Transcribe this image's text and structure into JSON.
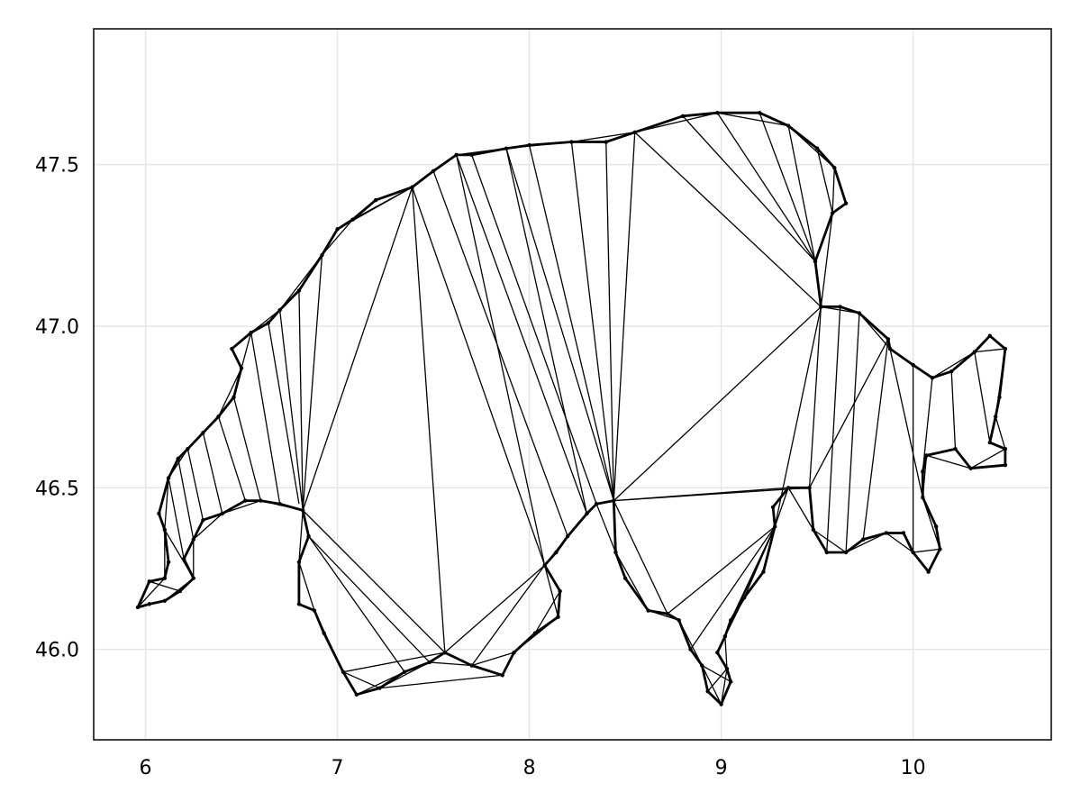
{
  "chart_data": {
    "type": "line",
    "title": "",
    "xlabel": "",
    "ylabel": "",
    "xlim": [
      5.73,
      10.72
    ],
    "ylim": [
      45.72,
      47.92
    ],
    "xticks": [
      6,
      7,
      8,
      9,
      10
    ],
    "yticks": [
      46.0,
      46.5,
      47.0,
      47.5
    ],
    "xtick_labels": [
      "6",
      "7",
      "8",
      "9",
      "10"
    ],
    "ytick_labels": [
      "46.0",
      "46.5",
      "47.0",
      "47.5"
    ],
    "grid": true,
    "line_color": "#000000",
    "series": [
      {
        "outline": [
          [
            5.96,
            46.13
          ],
          [
            6.02,
            46.21
          ],
          [
            6.1,
            46.22
          ],
          [
            6.12,
            46.27
          ],
          [
            6.1,
            46.37
          ],
          [
            6.07,
            46.42
          ],
          [
            6.12,
            46.53
          ],
          [
            6.17,
            46.59
          ],
          [
            6.22,
            46.62
          ],
          [
            6.3,
            46.67
          ],
          [
            6.38,
            46.72
          ],
          [
            6.46,
            46.78
          ],
          [
            6.5,
            46.87
          ],
          [
            6.45,
            46.93
          ],
          [
            6.55,
            46.98
          ],
          [
            6.64,
            47.01
          ],
          [
            6.7,
            47.05
          ],
          [
            6.8,
            47.11
          ],
          [
            6.92,
            47.22
          ],
          [
            7.0,
            47.3
          ],
          [
            7.08,
            47.33
          ],
          [
            7.2,
            47.39
          ],
          [
            7.39,
            47.43
          ],
          [
            7.5,
            47.48
          ],
          [
            7.62,
            47.53
          ],
          [
            7.7,
            47.53
          ],
          [
            7.88,
            47.55
          ],
          [
            8.0,
            47.56
          ],
          [
            8.22,
            47.57
          ],
          [
            8.4,
            47.57
          ],
          [
            8.55,
            47.6
          ],
          [
            8.8,
            47.65
          ],
          [
            8.98,
            47.66
          ],
          [
            9.2,
            47.66
          ],
          [
            9.35,
            47.62
          ],
          [
            9.5,
            47.55
          ],
          [
            9.59,
            47.49
          ],
          [
            9.65,
            47.38
          ],
          [
            9.58,
            47.35
          ],
          [
            9.49,
            47.2
          ],
          [
            9.52,
            47.06
          ],
          [
            9.62,
            47.06
          ],
          [
            9.72,
            47.04
          ],
          [
            9.87,
            46.96
          ],
          [
            9.88,
            46.93
          ],
          [
            10.0,
            46.88
          ],
          [
            10.1,
            46.84
          ],
          [
            10.2,
            46.86
          ],
          [
            10.32,
            46.92
          ],
          [
            10.4,
            46.97
          ],
          [
            10.48,
            46.93
          ],
          [
            10.45,
            46.78
          ],
          [
            10.43,
            46.72
          ],
          [
            10.4,
            46.64
          ],
          [
            10.48,
            46.62
          ],
          [
            10.48,
            46.57
          ],
          [
            10.3,
            46.56
          ],
          [
            10.22,
            46.62
          ],
          [
            10.07,
            46.6
          ],
          [
            10.05,
            46.55
          ],
          [
            10.05,
            46.47
          ],
          [
            10.12,
            46.38
          ],
          [
            10.14,
            46.31
          ],
          [
            10.08,
            46.24
          ],
          [
            10.0,
            46.3
          ],
          [
            9.95,
            46.36
          ],
          [
            9.86,
            46.36
          ],
          [
            9.74,
            46.34
          ],
          [
            9.65,
            46.3
          ],
          [
            9.55,
            46.3
          ],
          [
            9.48,
            46.37
          ],
          [
            9.46,
            46.5
          ],
          [
            9.35,
            46.5
          ],
          [
            9.27,
            46.44
          ],
          [
            9.28,
            46.38
          ],
          [
            9.22,
            46.24
          ],
          [
            9.12,
            46.16
          ],
          [
            9.05,
            46.09
          ],
          [
            9.02,
            46.04
          ],
          [
            8.98,
            45.99
          ],
          [
            9.03,
            45.94
          ],
          [
            9.05,
            45.9
          ],
          [
            9.0,
            45.83
          ],
          [
            8.93,
            45.87
          ],
          [
            8.9,
            45.95
          ],
          [
            8.84,
            46.0
          ],
          [
            8.78,
            46.09
          ],
          [
            8.72,
            46.11
          ],
          [
            8.62,
            46.12
          ],
          [
            8.5,
            46.22
          ],
          [
            8.45,
            46.3
          ],
          [
            8.44,
            46.46
          ],
          [
            8.35,
            46.45
          ],
          [
            8.3,
            46.42
          ],
          [
            8.2,
            46.35
          ],
          [
            8.14,
            46.3
          ],
          [
            8.08,
            46.26
          ],
          [
            8.16,
            46.18
          ],
          [
            8.15,
            46.1
          ],
          [
            8.03,
            46.05
          ],
          [
            7.92,
            45.99
          ],
          [
            7.86,
            45.92
          ],
          [
            7.7,
            45.95
          ],
          [
            7.56,
            45.99
          ],
          [
            7.48,
            45.96
          ],
          [
            7.35,
            45.93
          ],
          [
            7.22,
            45.88
          ],
          [
            7.1,
            45.86
          ],
          [
            7.03,
            45.93
          ],
          [
            6.93,
            46.05
          ],
          [
            6.88,
            46.12
          ],
          [
            6.8,
            46.14
          ],
          [
            6.8,
            46.27
          ],
          [
            6.85,
            46.35
          ],
          [
            6.82,
            46.43
          ],
          [
            6.7,
            46.45
          ],
          [
            6.6,
            46.46
          ],
          [
            6.52,
            46.46
          ],
          [
            6.4,
            46.42
          ],
          [
            6.3,
            46.4
          ],
          [
            6.25,
            46.34
          ],
          [
            6.2,
            46.28
          ],
          [
            6.25,
            46.22
          ],
          [
            6.18,
            46.18
          ],
          [
            6.1,
            46.15
          ],
          [
            6.02,
            46.14
          ]
        ],
        "chords": [
          [
            7.39,
            47.43,
            6.82,
            46.43
          ],
          [
            7.39,
            47.43,
            7.56,
            45.99
          ],
          [
            7.39,
            47.43,
            8.08,
            46.26
          ],
          [
            7.62,
            47.53,
            8.08,
            46.26
          ],
          [
            7.62,
            47.53,
            8.3,
            46.42
          ],
          [
            7.88,
            47.55,
            8.3,
            46.42
          ],
          [
            7.88,
            47.55,
            8.44,
            46.46
          ],
          [
            8.22,
            47.57,
            8.44,
            46.46
          ],
          [
            8.4,
            47.57,
            8.44,
            46.46
          ],
          [
            8.55,
            47.6,
            9.52,
            47.06
          ],
          [
            8.55,
            47.6,
            8.44,
            46.46
          ],
          [
            9.52,
            47.06,
            8.44,
            46.46
          ],
          [
            9.52,
            47.06,
            9.28,
            46.38
          ],
          [
            9.52,
            47.06,
            9.46,
            46.5
          ],
          [
            9.46,
            46.5,
            8.44,
            46.46
          ],
          [
            9.35,
            46.5,
            8.44,
            46.46
          ],
          [
            8.8,
            47.65,
            9.49,
            47.2
          ],
          [
            8.98,
            47.66,
            9.49,
            47.2
          ],
          [
            9.2,
            47.66,
            9.49,
            47.2
          ],
          [
            9.87,
            46.96,
            9.46,
            46.5
          ],
          [
            9.87,
            46.96,
            9.74,
            46.34
          ],
          [
            9.88,
            46.93,
            10.05,
            46.47
          ],
          [
            10.1,
            46.84,
            10.05,
            46.55
          ],
          [
            10.2,
            46.86,
            10.22,
            46.62
          ],
          [
            10.32,
            46.92,
            10.4,
            46.64
          ],
          [
            6.82,
            46.43,
            7.56,
            45.99
          ],
          [
            6.85,
            46.35,
            7.48,
            45.96
          ],
          [
            6.85,
            46.35,
            7.35,
            45.93
          ],
          [
            7.56,
            45.99,
            8.08,
            46.26
          ],
          [
            7.7,
            45.95,
            8.08,
            46.26
          ],
          [
            8.44,
            46.46,
            8.72,
            46.11
          ],
          [
            8.5,
            46.22,
            8.62,
            46.12
          ],
          [
            9.28,
            46.38,
            8.72,
            46.11
          ],
          [
            9.28,
            46.38,
            8.84,
            46.0
          ],
          [
            9.28,
            46.38,
            9.02,
            46.04
          ],
          [
            9.28,
            46.38,
            9.05,
            46.09
          ],
          [
            6.7,
            47.05,
            6.82,
            46.43
          ],
          [
            6.8,
            47.11,
            6.82,
            46.43
          ],
          [
            6.92,
            47.22,
            6.82,
            46.43
          ],
          [
            6.64,
            47.01,
            6.8,
            46.45
          ],
          [
            6.55,
            46.98,
            6.7,
            46.45
          ],
          [
            6.46,
            46.78,
            6.6,
            46.46
          ],
          [
            6.38,
            46.72,
            6.52,
            46.46
          ],
          [
            6.3,
            46.67,
            6.4,
            46.42
          ],
          [
            6.22,
            46.62,
            6.3,
            46.4
          ],
          [
            6.17,
            46.59,
            6.25,
            46.34
          ],
          [
            6.12,
            46.53,
            6.2,
            46.28
          ],
          [
            6.1,
            46.37,
            6.25,
            46.22
          ],
          [
            6.02,
            46.21,
            6.18,
            46.18
          ],
          [
            7.0,
            47.3,
            7.39,
            47.43
          ],
          [
            7.5,
            47.48,
            8.2,
            46.35
          ],
          [
            7.7,
            47.53,
            8.35,
            46.45
          ],
          [
            8.0,
            47.56,
            8.44,
            46.46
          ],
          [
            9.35,
            47.62,
            9.49,
            47.2
          ],
          [
            9.5,
            47.55,
            9.58,
            47.35
          ],
          [
            9.62,
            47.06,
            9.55,
            46.3
          ],
          [
            9.72,
            47.04,
            9.65,
            46.3
          ],
          [
            10.0,
            46.88,
            10.0,
            46.3
          ],
          [
            8.93,
            45.87,
            9.03,
            45.94
          ],
          [
            8.9,
            45.95,
            9.05,
            45.9
          ],
          [
            7.1,
            45.86,
            7.35,
            45.93
          ],
          [
            7.22,
            45.88,
            7.86,
            45.92
          ],
          [
            7.03,
            45.93,
            7.56,
            45.99
          ],
          [
            8.03,
            46.05,
            8.16,
            46.18
          ]
        ]
      }
    ]
  }
}
